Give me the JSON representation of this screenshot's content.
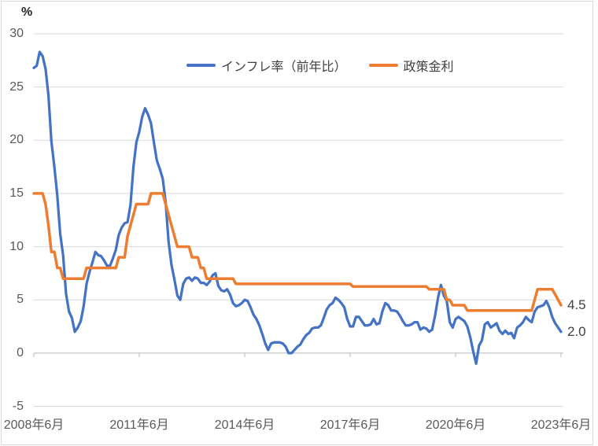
{
  "chart_data": {
    "type": "line",
    "title": "",
    "ylabel": "%",
    "ylim": [
      -5,
      30
    ],
    "y_ticks": [
      30,
      25,
      20,
      15,
      10,
      5,
      0,
      -5
    ],
    "x_tick_labels": [
      "2008年6月",
      "2011年6月",
      "2014年6月",
      "2017年6月",
      "2020年6月",
      "2023年6月"
    ],
    "x_frequency": "monthly",
    "x_range": "2008年6月 - 2023年6月",
    "grid": true,
    "legend_position": "top",
    "series": [
      {
        "name": "インフレ率（前年比）",
        "color": "#4472C4",
        "values": [
          26.8,
          27.0,
          28.3,
          27.9,
          26.7,
          24.2,
          19.9,
          17.5,
          14.8,
          11.2,
          9.2,
          5.6,
          3.9,
          3.3,
          2.0,
          2.4,
          3.0,
          4.4,
          6.5,
          7.6,
          8.5,
          9.5,
          9.2,
          9.1,
          8.7,
          8.2,
          8.2,
          8.9,
          9.7,
          11.1,
          11.8,
          12.2,
          12.3,
          13.9,
          17.5,
          19.8,
          20.8,
          22.2,
          23.0,
          22.4,
          21.6,
          19.8,
          18.1,
          17.3,
          16.4,
          14.2,
          10.5,
          8.3,
          6.9,
          5.4,
          5.0,
          6.5,
          7.0,
          7.1,
          6.8,
          7.1,
          7.0,
          6.6,
          6.6,
          6.4,
          6.7,
          7.3,
          7.5,
          6.3,
          5.9,
          5.8,
          6.0,
          5.5,
          4.7,
          4.4,
          4.5,
          4.7,
          5.0,
          4.9,
          4.3,
          3.6,
          3.2,
          2.6,
          1.8,
          0.9,
          0.3,
          0.9,
          1.0,
          1.0,
          1.0,
          0.9,
          0.6,
          0.0,
          0.0,
          0.3,
          0.6,
          0.8,
          1.3,
          1.7,
          1.9,
          2.3,
          2.4,
          2.4,
          2.6,
          3.3,
          4.1,
          4.5,
          4.7,
          5.2,
          5.0,
          4.7,
          4.3,
          3.2,
          2.5,
          2.5,
          3.4,
          3.4,
          3.0,
          2.6,
          2.6,
          2.7,
          3.2,
          2.7,
          2.8,
          3.9,
          4.7,
          4.5,
          4.0,
          4.0,
          3.9,
          3.5,
          3.0,
          2.6,
          2.6,
          2.7,
          2.9,
          2.9,
          2.2,
          2.4,
          2.3,
          2.0,
          2.2,
          3.5,
          5.2,
          6.4,
          5.4,
          4.9,
          2.9,
          2.4,
          3.2,
          3.4,
          3.2,
          3.0,
          2.5,
          1.5,
          0.2,
          -1.0,
          0.7,
          1.2,
          2.7,
          2.9,
          2.4,
          2.6,
          2.8,
          2.1,
          1.8,
          2.1,
          1.8,
          1.9,
          1.4,
          2.4,
          2.6,
          2.9,
          3.4,
          3.1,
          2.9,
          3.9,
          4.3,
          4.4,
          4.5,
          4.9,
          4.3,
          3.4,
          2.8,
          2.4,
          2.0
        ]
      },
      {
        "name": "政策金利",
        "color": "#ED7D31",
        "values": [
          15,
          15,
          15,
          15,
          14,
          12,
          9.5,
          9.5,
          8,
          8,
          7,
          7,
          7,
          7,
          7,
          7,
          7,
          7,
          8,
          8,
          8,
          8,
          8,
          8,
          8,
          8,
          8,
          8,
          8,
          9,
          9,
          9,
          11,
          12,
          13,
          14,
          14,
          14,
          14,
          14,
          15,
          15,
          15,
          15,
          15,
          14,
          13,
          12,
          11,
          10,
          10,
          10,
          10,
          10,
          9,
          9,
          9,
          8,
          8,
          7,
          7,
          7,
          7,
          7,
          7,
          7,
          7,
          7,
          7,
          6.5,
          6.5,
          6.5,
          6.5,
          6.5,
          6.5,
          6.5,
          6.5,
          6.5,
          6.5,
          6.5,
          6.5,
          6.5,
          6.5,
          6.5,
          6.5,
          6.5,
          6.5,
          6.5,
          6.5,
          6.5,
          6.5,
          6.5,
          6.5,
          6.5,
          6.5,
          6.5,
          6.5,
          6.5,
          6.5,
          6.5,
          6.5,
          6.5,
          6.5,
          6.5,
          6.5,
          6.5,
          6.5,
          6.5,
          6.5,
          6.25,
          6.25,
          6.25,
          6.25,
          6.25,
          6.25,
          6.25,
          6.25,
          6.25,
          6.25,
          6.25,
          6.25,
          6.25,
          6.25,
          6.25,
          6.25,
          6.25,
          6.25,
          6.25,
          6.25,
          6.25,
          6.25,
          6.25,
          6.25,
          6.25,
          6.25,
          6.0,
          6.0,
          6.0,
          6.0,
          6.0,
          6.0,
          5.0,
          5.0,
          4.5,
          4.5,
          4.5,
          4.5,
          4.5,
          4.0,
          4.0,
          4.0,
          4.0,
          4.0,
          4.0,
          4.0,
          4.0,
          4.0,
          4.0,
          4.0,
          4.0,
          4.0,
          4.0,
          4.0,
          4.0,
          4.0,
          4.0,
          4.0,
          4.0,
          4.0,
          4.0,
          4.0,
          5.0,
          6.0,
          6.0,
          6.0,
          6.0,
          6.0,
          6.0,
          5.5,
          5.0,
          4.5
        ]
      }
    ],
    "end_value_labels": [
      {
        "text": "4.5",
        "series": "政策金利"
      },
      {
        "text": "2.0",
        "series": "インフレ率（前年比）"
      }
    ]
  },
  "colors": {
    "inflation_line": "#4472C4",
    "policy_rate_line": "#ED7D31",
    "gridline": "#D9D9D9",
    "axis": "#B7B7B7",
    "tick_label": "#595959",
    "legend_text": "#404040",
    "background": "#FFFFFF"
  }
}
